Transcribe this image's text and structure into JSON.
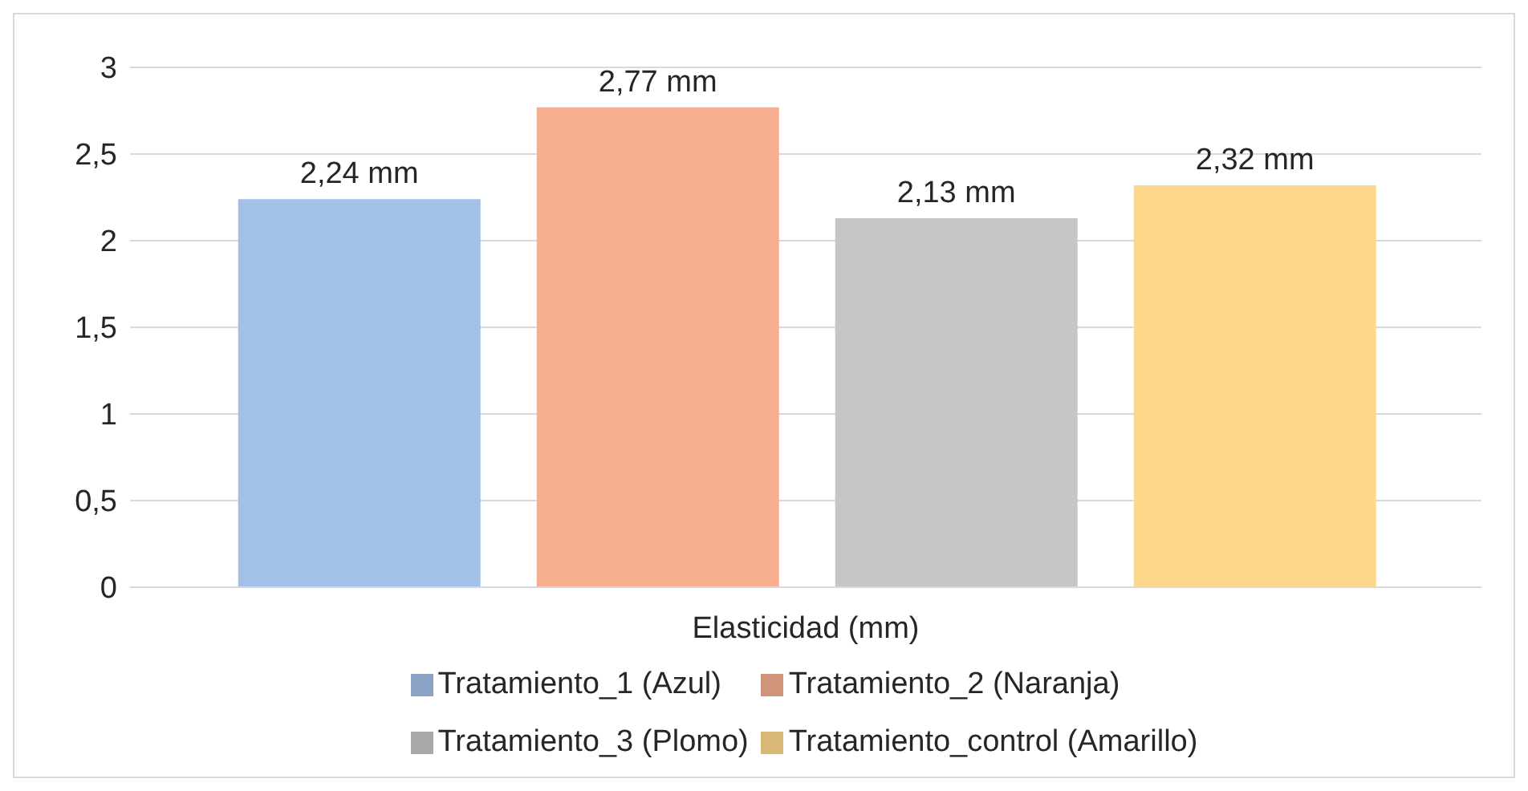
{
  "chart_data": {
    "type": "bar",
    "categories": [
      "Elasticidad (mm)"
    ],
    "series": [
      {
        "name": "Tratamiento_1 (Azul)",
        "color": "#a3c0e6",
        "values": [
          2.24
        ],
        "value_labels": [
          "2,24 mm"
        ]
      },
      {
        "name": "Tratamiento_2 (Naranja)",
        "color": "#f6ae8f",
        "values": [
          2.77
        ],
        "value_labels": [
          "2,77 mm"
        ]
      },
      {
        "name": "Tratamiento_3 (Plomo)",
        "color": "#c6c6c6",
        "values": [
          2.13
        ],
        "value_labels": [
          "2,13 mm"
        ]
      },
      {
        "name": "Tratamiento_control (Amarillo)",
        "color": "#fed88a",
        "values": [
          2.32
        ],
        "value_labels": [
          "2,32 mm"
        ]
      }
    ],
    "ylim": [
      0,
      3
    ],
    "yticks": [
      0,
      {
        "value": 0.5,
        "label": "0,5"
      },
      1,
      {
        "value": 1.5,
        "label": "1,5"
      },
      2,
      {
        "value": 2.5,
        "label": "2,5"
      },
      3
    ],
    "grid": "y",
    "legend": "bottom"
  }
}
